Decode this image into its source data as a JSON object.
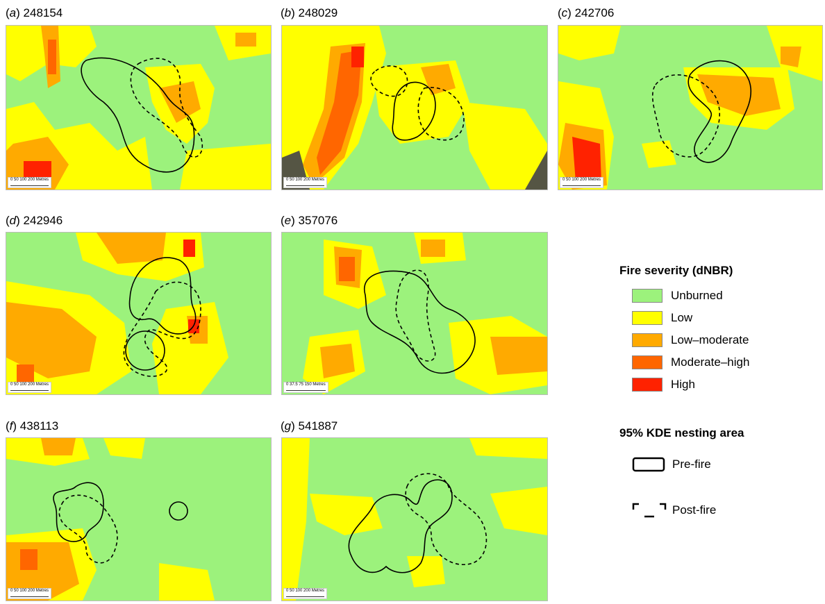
{
  "panels": [
    {
      "letter": "a",
      "id": "248154",
      "scale": "0   50  100        200 Metres"
    },
    {
      "letter": "b",
      "id": "248029",
      "scale": "0   50  100        200 Metres"
    },
    {
      "letter": "c",
      "id": "242706",
      "scale": "0   50  100        200 Metres"
    },
    {
      "letter": "d",
      "id": "242946",
      "scale": "0   50  100        200 Metres"
    },
    {
      "letter": "e",
      "id": "357076",
      "scale": "0   37.5  75        150 Metres"
    },
    {
      "letter": "f",
      "id": "438113",
      "scale": "0   50  100        200 Metres"
    },
    {
      "letter": "g",
      "id": "541887",
      "scale": "0   50  100        200 Metres"
    }
  ],
  "legend": {
    "title": "Fire severity (dNBR)",
    "items": [
      {
        "label": "Unburned",
        "color": "#9cf27c"
      },
      {
        "label": "Low",
        "color": "#ffff00"
      },
      {
        "label": "Low–moderate",
        "color": "#ffaa00"
      },
      {
        "label": "Moderate–high",
        "color": "#ff6600"
      },
      {
        "label": "High",
        "color": "#ff2200"
      }
    ]
  },
  "kde": {
    "title": "95% KDE nesting area",
    "pre_label": "Pre-fire",
    "post_label": "Post-fire"
  }
}
